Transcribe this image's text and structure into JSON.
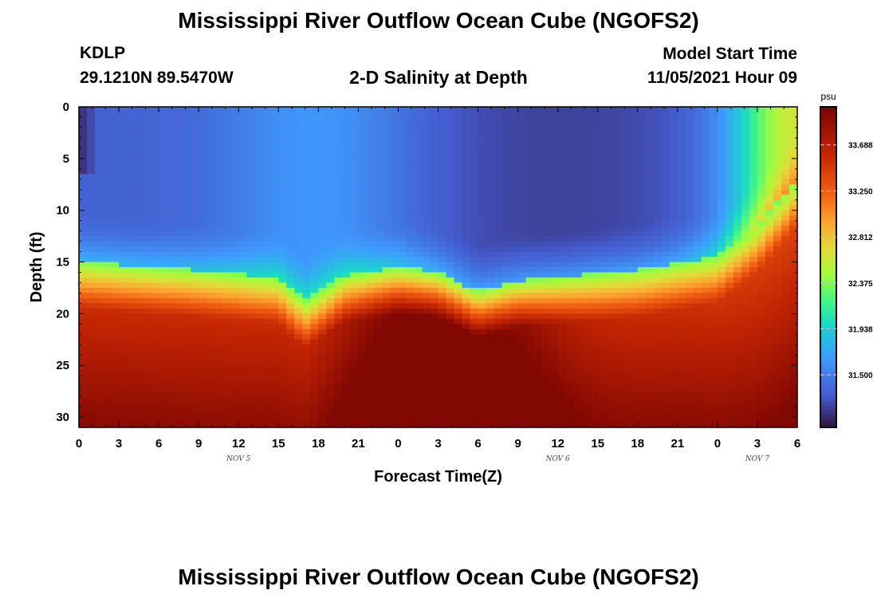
{
  "page": {
    "title": "Mississippi River Outflow Ocean Cube (NGOFS2)",
    "station": "KDLP",
    "coords": "29.1210N  89.5470W",
    "subtitle": "2-D Salinity at Depth",
    "model_start_label": "Model Start Time",
    "model_start_value": "11/05/2021 Hour 09",
    "footer_title": "Mississippi River Outflow Ocean Cube (NGOFS2)"
  },
  "chart_data": {
    "type": "heatmap",
    "title": "2-D Salinity at Depth",
    "xlabel": "Forecast Time(Z)",
    "ylabel": "Depth (ft)",
    "x_range_hours": [
      0,
      54
    ],
    "xticks": [
      {
        "hour": 0,
        "label": "0"
      },
      {
        "hour": 3,
        "label": "3"
      },
      {
        "hour": 6,
        "label": "6"
      },
      {
        "hour": 9,
        "label": "9"
      },
      {
        "hour": 12,
        "label": "12"
      },
      {
        "hour": 15,
        "label": "15"
      },
      {
        "hour": 18,
        "label": "18"
      },
      {
        "hour": 21,
        "label": "21"
      },
      {
        "hour": 24,
        "label": "0"
      },
      {
        "hour": 27,
        "label": "3"
      },
      {
        "hour": 30,
        "label": "6"
      },
      {
        "hour": 33,
        "label": "9"
      },
      {
        "hour": 36,
        "label": "12"
      },
      {
        "hour": 39,
        "label": "15"
      },
      {
        "hour": 42,
        "label": "18"
      },
      {
        "hour": 45,
        "label": "21"
      },
      {
        "hour": 48,
        "label": "0"
      },
      {
        "hour": 51,
        "label": "3"
      },
      {
        "hour": 54,
        "label": "6"
      }
    ],
    "date_labels": [
      {
        "hour": 12,
        "label": "NOV 5"
      },
      {
        "hour": 36,
        "label": "NOV 6"
      },
      {
        "hour": 51,
        "label": "NOV 7"
      }
    ],
    "y_range_ft": [
      0,
      31
    ],
    "yticks": [
      0,
      5,
      10,
      15,
      20,
      25,
      30
    ],
    "colorbar": {
      "unit": "psu",
      "range": [
        31.0,
        34.05
      ],
      "ticks": [
        31.5,
        31.938,
        32.375,
        32.812,
        33.25,
        33.688
      ],
      "tick_labels": [
        "31.500",
        "31.938",
        "32.375",
        "32.812",
        "33.250",
        "33.688"
      ]
    },
    "field": {
      "description_units": "salinity psu on depth (ft) x forecast hour grid",
      "surface_min": 31.1,
      "deep_max": 34.0,
      "halocline_depth_ft_by_hour": [
        {
          "hour": 0,
          "depth": 16.0
        },
        {
          "hour": 9,
          "depth": 16.8
        },
        {
          "hour": 15,
          "depth": 17.5
        },
        {
          "hour": 17,
          "depth": 19.8
        },
        {
          "hour": 20,
          "depth": 17.3
        },
        {
          "hour": 24,
          "depth": 16.5
        },
        {
          "hour": 27,
          "depth": 17.0
        },
        {
          "hour": 30,
          "depth": 18.8
        },
        {
          "hour": 33,
          "depth": 17.8
        },
        {
          "hour": 42,
          "depth": 16.8
        },
        {
          "hour": 48,
          "depth": 15.5
        },
        {
          "hour": 51,
          "depth": 12.5
        },
        {
          "hour": 54,
          "depth": 8.0
        }
      ]
    }
  }
}
